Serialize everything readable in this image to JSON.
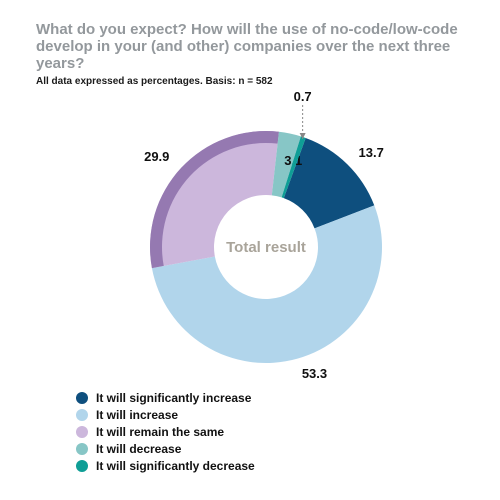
{
  "title": "What do you expect? How will the use of no-code/low-code develop in your (and other) companies over the next three years?",
  "subtitle": "All data expressed as percentages. Basis: n = 582",
  "donut": {
    "type": "pie",
    "center_label": "Total result",
    "center_label_fontsize": 15,
    "center_label_color": "#a9a49a",
    "title_fontsize": 15,
    "title_color": "#93989c",
    "subtitle_fontsize": 10,
    "subtitle_color": "#1b1b1b",
    "outer_radius": 116,
    "inner_radius": 52,
    "background_color": "#ffffff",
    "value_label_fontsize": 13,
    "start_angle_deg": 20,
    "slices": [
      {
        "label": "It will significantly increase",
        "value": 13.7,
        "display": "13.7",
        "color": "#0e4f7e"
      },
      {
        "label": "It will increase",
        "value": 53.3,
        "display": "53.3",
        "color": "#b1d5eb"
      },
      {
        "label": "It will remain the same",
        "value": 29.9,
        "display": "29.9",
        "color": "#ccb7dc",
        "accent": "#9579b1"
      },
      {
        "label": "It will decrease",
        "value": 3.1,
        "display": "3.1",
        "color": "#87c6c6"
      },
      {
        "label": "It will significantly decrease",
        "value": 0.7,
        "display": "0.7",
        "color": "#0f9e96",
        "callout": true
      }
    ],
    "legend_swatch_size": 12,
    "legend_fontsize": 12
  }
}
